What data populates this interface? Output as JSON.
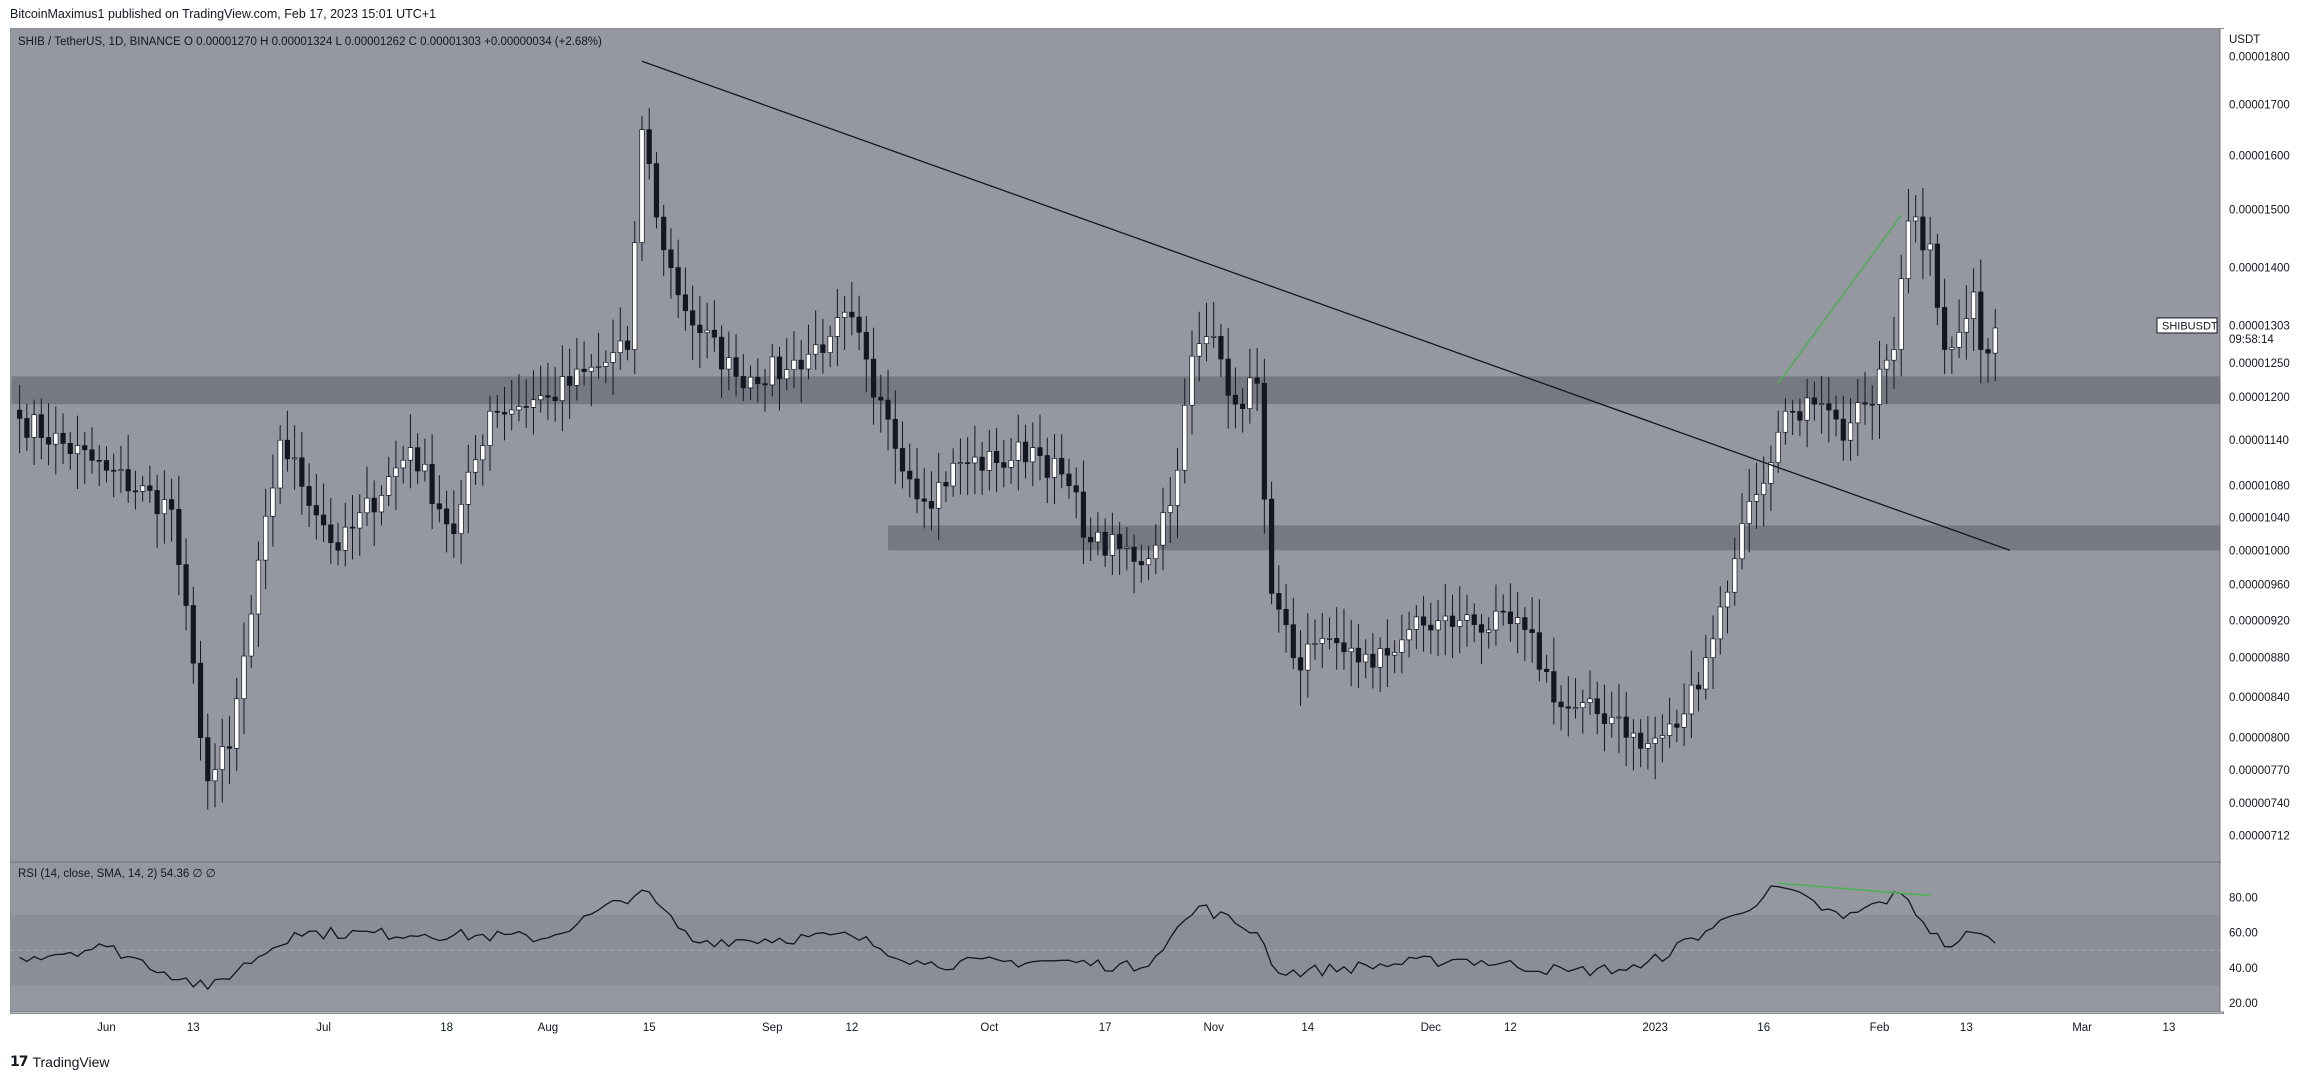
{
  "header": {
    "publisher": "BitcoinMaximus1",
    "published_text": " published on TradingView.com, Feb 17, 2023 15:01 UTC+1"
  },
  "symbol_bar": {
    "symbol": "SHIB / TetherUS, 1D, BINANCE",
    "open_label": "O",
    "open": "0.00001270",
    "high_label": "H",
    "high": "0.00001324",
    "low_label": "L",
    "low": "0.00001262",
    "close_label": "C",
    "close": "0.00001303",
    "change": "+0.00000034 (+2.68%)"
  },
  "price_axis": {
    "unit": "USDT",
    "ticks": [
      "0.00001800",
      "0.00001700",
      "0.00001600",
      "0.00001500",
      "0.00001400",
      "0.00001250",
      "0.00001200",
      "0.00001140",
      "0.00001080",
      "0.00001040",
      "0.00001000",
      "0.00000960",
      "0.00000920",
      "0.00000880",
      "0.00000840",
      "0.00000800",
      "0.00000770",
      "0.00000740",
      "0.00000712"
    ],
    "last_price_tag": {
      "symbol": "SHIBUSDT",
      "price": "0.00001303",
      "countdown": "09:58:14"
    }
  },
  "rsi_panel": {
    "label": "RSI (14, close, SMA, 14, 2)",
    "value": "54.36",
    "extra": "∅ ∅",
    "ticks": [
      "80.00",
      "60.00",
      "40.00",
      "20.00"
    ]
  },
  "time_axis": {
    "ticks": [
      "Jun",
      "13",
      "Jul",
      "18",
      "Aug",
      "15",
      "Sep",
      "12",
      "Oct",
      "17",
      "Nov",
      "14",
      "Dec",
      "12",
      "2023",
      "16",
      "Feb",
      "13",
      "Mar",
      "13"
    ]
  },
  "footer": {
    "brand": "TradingView"
  },
  "colors": {
    "chart_bg": "#9598a1",
    "up_candle": "#ffffff",
    "down_candle": "#131722",
    "zone": "#5d6068",
    "trendline": "#131722",
    "divergence": "#4caf50",
    "rsi_band": "#8b8e97"
  },
  "chart_data": {
    "type": "candlestick",
    "title": "SHIB / TetherUS, 1D, BINANCE",
    "ylabel": "USDT",
    "y_scale": "log",
    "ylim": [
      6.9e-06,
      1.86e-05
    ],
    "anchors": [
      {
        "date": "2022-05-20",
        "close": 1.17e-05
      },
      {
        "date": "2022-06-01",
        "close": 1.1e-05
      },
      {
        "date": "2022-06-10",
        "close": 1.05e-05
      },
      {
        "date": "2022-06-15",
        "close": 7.6e-06
      },
      {
        "date": "2022-06-18",
        "close": 7.9e-06
      },
      {
        "date": "2022-06-25",
        "close": 1.14e-05
      },
      {
        "date": "2022-07-03",
        "close": 1e-05
      },
      {
        "date": "2022-07-13",
        "close": 1.13e-05
      },
      {
        "date": "2022-07-19",
        "close": 1.02e-05
      },
      {
        "date": "2022-07-24",
        "close": 1.18e-05
      },
      {
        "date": "2022-08-01",
        "close": 1.2e-05
      },
      {
        "date": "2022-08-12",
        "close": 1.27e-05
      },
      {
        "date": "2022-08-14",
        "close": 1.65e-05
      },
      {
        "date": "2022-08-17",
        "close": 1.43e-05
      },
      {
        "date": "2022-08-20",
        "close": 1.33e-05
      },
      {
        "date": "2022-08-27",
        "close": 1.23e-05
      },
      {
        "date": "2022-09-03",
        "close": 1.24e-05
      },
      {
        "date": "2022-09-09",
        "close": 1.29e-05
      },
      {
        "date": "2022-09-12",
        "close": 1.32e-05
      },
      {
        "date": "2022-09-15",
        "close": 1.2e-05
      },
      {
        "date": "2022-09-22",
        "close": 1.06e-05
      },
      {
        "date": "2022-09-27",
        "close": 1.11e-05
      },
      {
        "date": "2022-10-02",
        "close": 1.11e-05
      },
      {
        "date": "2022-10-07",
        "close": 1.13e-05
      },
      {
        "date": "2022-10-12",
        "close": 1.08e-05
      },
      {
        "date": "2022-10-15",
        "close": 1.01e-05
      },
      {
        "date": "2022-10-23",
        "close": 9.9e-06
      },
      {
        "date": "2022-10-27",
        "close": 1.1e-05
      },
      {
        "date": "2022-10-29",
        "close": 1.26e-05
      },
      {
        "date": "2022-11-01",
        "close": 1.29e-05
      },
      {
        "date": "2022-11-04",
        "close": 1.19e-05
      },
      {
        "date": "2022-11-07",
        "close": 1.22e-05
      },
      {
        "date": "2022-11-09",
        "close": 9.5e-06
      },
      {
        "date": "2022-11-12",
        "close": 8.8e-06
      },
      {
        "date": "2022-11-20",
        "close": 8.9e-06
      },
      {
        "date": "2022-11-23",
        "close": 8.7e-06
      },
      {
        "date": "2022-11-28",
        "close": 9.1e-06
      },
      {
        "date": "2022-12-05",
        "close": 9.2e-06
      },
      {
        "date": "2022-12-14",
        "close": 9.1e-06
      },
      {
        "date": "2022-12-19",
        "close": 8.3e-06
      },
      {
        "date": "2022-12-27",
        "close": 8.2e-06
      },
      {
        "date": "2022-12-30",
        "close": 7.9e-06
      },
      {
        "date": "2023-01-04",
        "close": 8.1e-06
      },
      {
        "date": "2023-01-08",
        "close": 8.8e-06
      },
      {
        "date": "2023-01-12",
        "close": 9.9e-06
      },
      {
        "date": "2023-01-14",
        "close": 1.06e-05
      },
      {
        "date": "2023-01-17",
        "close": 1.11e-05
      },
      {
        "date": "2023-01-19",
        "close": 1.18e-05
      },
      {
        "date": "2023-01-23",
        "close": 1.19e-05
      },
      {
        "date": "2023-01-27",
        "close": 1.14e-05
      },
      {
        "date": "2023-01-30",
        "close": 1.19e-05
      },
      {
        "date": "2023-02-03",
        "close": 1.27e-05
      },
      {
        "date": "2023-02-05",
        "close": 1.48e-05
      },
      {
        "date": "2023-02-08",
        "close": 1.44e-05
      },
      {
        "date": "2023-02-10",
        "close": 1.27e-05
      },
      {
        "date": "2023-02-14",
        "close": 1.36e-05
      },
      {
        "date": "2023-02-15",
        "close": 1.27e-05
      },
      {
        "date": "2023-02-17",
        "close": 1.303e-05
      }
    ],
    "horizontal_zones": [
      {
        "low": 1.19e-05,
        "high": 1.23e-05
      },
      {
        "low": 1e-05,
        "high": 1.03e-05
      }
    ],
    "trendline": {
      "start": {
        "date": "2022-08-14",
        "price": 1.79e-05
      },
      "end": {
        "date": "2023-02-19",
        "price": 1e-05
      }
    },
    "price_divergence": {
      "start": {
        "date": "2023-01-18",
        "price": 1.22e-05
      },
      "end": {
        "date": "2023-02-04",
        "price": 1.49e-05
      }
    },
    "rsi": {
      "ylim": [
        15,
        100
      ],
      "band": [
        30,
        70
      ],
      "anchors": [
        {
          "date": "2022-05-20",
          "value": 46
        },
        {
          "date": "2022-06-01",
          "value": 52
        },
        {
          "date": "2022-06-15",
          "value": 28
        },
        {
          "date": "2022-06-27",
          "value": 60
        },
        {
          "date": "2022-07-15",
          "value": 59
        },
        {
          "date": "2022-08-01",
          "value": 57
        },
        {
          "date": "2022-08-14",
          "value": 84
        },
        {
          "date": "2022-08-21",
          "value": 55
        },
        {
          "date": "2022-09-12",
          "value": 58
        },
        {
          "date": "2022-09-22",
          "value": 42
        },
        {
          "date": "2022-10-10",
          "value": 44
        },
        {
          "date": "2022-10-22",
          "value": 40
        },
        {
          "date": "2022-10-30",
          "value": 75
        },
        {
          "date": "2022-11-07",
          "value": 60
        },
        {
          "date": "2022-11-10",
          "value": 37
        },
        {
          "date": "2022-12-05",
          "value": 45
        },
        {
          "date": "2022-12-20",
          "value": 38
        },
        {
          "date": "2022-12-30",
          "value": 40
        },
        {
          "date": "2023-01-12",
          "value": 70
        },
        {
          "date": "2023-01-18",
          "value": 86
        },
        {
          "date": "2023-01-27",
          "value": 68
        },
        {
          "date": "2023-02-04",
          "value": 82
        },
        {
          "date": "2023-02-10",
          "value": 52
        },
        {
          "date": "2023-02-14",
          "value": 60
        },
        {
          "date": "2023-02-17",
          "value": 54
        }
      ],
      "divergence": {
        "start": {
          "date": "2023-01-18",
          "value": 88
        },
        "end": {
          "date": "2023-02-08",
          "value": 81
        }
      }
    }
  }
}
